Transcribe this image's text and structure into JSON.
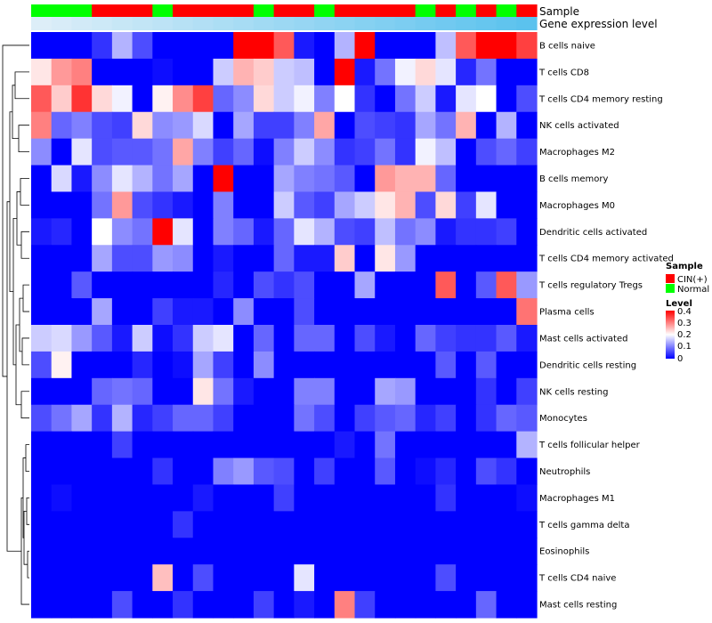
{
  "chart_data": {
    "type": "heatmap",
    "title": "",
    "annotation_tracks": {
      "sample": {
        "label": "Sample",
        "values": [
          "Normal",
          "Normal",
          "Normal",
          "CIN(+)",
          "CIN(+)",
          "CIN(+)",
          "Normal",
          "CIN(+)",
          "CIN(+)",
          "CIN(+)",
          "CIN(+)",
          "Normal",
          "CIN(+)",
          "CIN(+)",
          "Normal",
          "CIN(+)",
          "CIN(+)",
          "CIN(+)",
          "CIN(+)",
          "Normal",
          "CIN(+)",
          "Normal",
          "CIN(+)",
          "Normal",
          "CIN(+)"
        ]
      },
      "gene_expression_level": {
        "label": "Gene expression level",
        "values": [
          0.02,
          0.04,
          0.06,
          0.08,
          0.1,
          0.12,
          0.14,
          0.16,
          0.18,
          0.2,
          0.22,
          0.24,
          0.26,
          0.28,
          0.3,
          0.32,
          0.34,
          0.36,
          0.38,
          0.4,
          0.42,
          0.44,
          0.46,
          0.48,
          0.5
        ]
      }
    },
    "rows": [
      "B cells naive",
      "T cells CD8",
      "T cells CD4 memory resting",
      "NK cells activated",
      "Macrophages M2",
      "B cells memory",
      "Macrophages M0",
      "Dendritic cells activated",
      "T cells CD4 memory activated",
      "T cells regulatory  Tregs",
      "Plasma cells",
      "Mast cells activated",
      "Dendritic cells resting",
      "NK cells resting",
      "Monocytes",
      "T cells follicular helper",
      "Neutrophils",
      "Macrophages M1",
      "T cells gamma delta",
      "Eosinophils",
      "T cells CD4 naive",
      "Mast cells resting"
    ],
    "values": [
      [
        0,
        0,
        0,
        0.04,
        0.14,
        0.06,
        0,
        0,
        0,
        0,
        0.4,
        0.4,
        0.33,
        0.02,
        0,
        0.14,
        0.42,
        0,
        0,
        0,
        0.15,
        0.33,
        0.42,
        0.42,
        0.35
      ],
      [
        0.22,
        0.28,
        0.3,
        0,
        0,
        0,
        0.01,
        0,
        0,
        0.16,
        0.26,
        0.24,
        0.16,
        0.15,
        0,
        0.42,
        0.02,
        0.09,
        0.19,
        0.23,
        0.18,
        0.03,
        0.09,
        0,
        0
      ],
      [
        0.33,
        0.24,
        0.36,
        0.23,
        0.19,
        0,
        0.21,
        0.29,
        0.35,
        0.08,
        0.11,
        0.23,
        0.16,
        0.19,
        0.1,
        0.2,
        0.04,
        0,
        0.09,
        0.16,
        0.02,
        0.18,
        0.2,
        0,
        0.06
      ],
      [
        0.3,
        0.08,
        0.1,
        0.06,
        0.05,
        0.23,
        0.11,
        0.12,
        0.17,
        0,
        0.13,
        0.05,
        0.05,
        0.1,
        0.27,
        0,
        0.06,
        0.05,
        0.04,
        0.13,
        0.09,
        0.26,
        0,
        0.14,
        0
      ],
      [
        0.11,
        0,
        0.18,
        0.06,
        0.07,
        0.07,
        0.09,
        0.27,
        0.1,
        0.05,
        0.08,
        0.01,
        0.1,
        0.16,
        0.11,
        0.04,
        0.05,
        0.09,
        0.04,
        0.19,
        0.15,
        0,
        0.06,
        0.08,
        0.05
      ],
      [
        0,
        0.17,
        0.02,
        0.11,
        0.18,
        0.14,
        0.09,
        0.13,
        0,
        0.42,
        0,
        0,
        0.13,
        0.1,
        0.09,
        0.07,
        0,
        0.28,
        0.26,
        0.26,
        0.08,
        0,
        0,
        0,
        0
      ],
      [
        0,
        0,
        0,
        0.09,
        0.28,
        0.06,
        0.04,
        0.02,
        0,
        0.1,
        0,
        0,
        0.16,
        0.07,
        0.05,
        0.13,
        0.16,
        0.22,
        0.26,
        0.06,
        0.23,
        0.05,
        0.18,
        0,
        0
      ],
      [
        0.02,
        0.03,
        0,
        0.2,
        0.11,
        0.09,
        0.44,
        0.18,
        0,
        0.1,
        0.08,
        0.02,
        0.08,
        0.18,
        0.14,
        0.06,
        0.05,
        0.15,
        0.09,
        0.11,
        0.02,
        0.04,
        0.04,
        0.05,
        0
      ],
      [
        0,
        0,
        0,
        0.13,
        0.06,
        0.06,
        0.12,
        0.11,
        0,
        0.02,
        0,
        0,
        0.08,
        0.02,
        0.02,
        0.24,
        0,
        0.22,
        0.12,
        0,
        0,
        0,
        0,
        0,
        0
      ],
      [
        0,
        0,
        0.07,
        0,
        0,
        0,
        0,
        0,
        0,
        0.03,
        0,
        0.06,
        0.04,
        0.06,
        0,
        0,
        0.13,
        0,
        0,
        0,
        0.33,
        0,
        0.07,
        0.33,
        0.12
      ],
      [
        0,
        0,
        0,
        0.13,
        0,
        0,
        0.05,
        0.02,
        0.02,
        0,
        0.11,
        0,
        0,
        0.06,
        0,
        0,
        0,
        0,
        0,
        0,
        0,
        0,
        0,
        0,
        0.31
      ],
      [
        0.16,
        0.17,
        0.12,
        0.07,
        0.02,
        0.16,
        0.01,
        0.04,
        0.16,
        0.18,
        0,
        0.08,
        0,
        0.08,
        0.08,
        0,
        0.06,
        0.02,
        0,
        0.08,
        0.05,
        0.04,
        0.04,
        0.07,
        0.02
      ],
      [
        0.06,
        0.21,
        0,
        0,
        0,
        0.03,
        0,
        0.01,
        0.13,
        0.05,
        0,
        0.11,
        0,
        0,
        0,
        0,
        0,
        0,
        0,
        0,
        0.07,
        0,
        0.07,
        0,
        0
      ],
      [
        0,
        0,
        0,
        0.08,
        0.09,
        0.08,
        0,
        0,
        0.22,
        0.09,
        0.02,
        0,
        0,
        0.1,
        0.1,
        0,
        0,
        0.13,
        0.12,
        0,
        0,
        0,
        0.04,
        0,
        0.05
      ],
      [
        0.06,
        0.09,
        0.13,
        0.04,
        0.14,
        0.03,
        0.05,
        0.08,
        0.08,
        0.05,
        0,
        0,
        0,
        0.09,
        0.06,
        0,
        0.05,
        0.07,
        0.08,
        0.03,
        0.05,
        0,
        0.04,
        0.08,
        0.07
      ],
      [
        0,
        0,
        0,
        0,
        0.05,
        0,
        0,
        0,
        0,
        0,
        0,
        0,
        0,
        0,
        0,
        0.02,
        0,
        0.09,
        0,
        0,
        0,
        0,
        0,
        0,
        0.14
      ],
      [
        0,
        0,
        0,
        0,
        0,
        0,
        0.04,
        0,
        0,
        0.1,
        0.12,
        0.07,
        0.06,
        0,
        0.05,
        0,
        0,
        0.07,
        0,
        0.01,
        0.03,
        0,
        0.06,
        0.04,
        0
      ],
      [
        0,
        0.01,
        0,
        0,
        0,
        0,
        0,
        0,
        0.02,
        0,
        0,
        0,
        0.05,
        0,
        0,
        0,
        0,
        0,
        0,
        0,
        0.04,
        0,
        0,
        0,
        0.01
      ],
      [
        0,
        0,
        0,
        0,
        0,
        0,
        0,
        0.04,
        0,
        0,
        0,
        0,
        0,
        0,
        0,
        0,
        0,
        0,
        0,
        0,
        0,
        0,
        0,
        0,
        0
      ],
      [
        0,
        0,
        0,
        0,
        0,
        0,
        0,
        0,
        0,
        0,
        0,
        0,
        0,
        0,
        0,
        0,
        0,
        0,
        0,
        0,
        0,
        0,
        0,
        0,
        0
      ],
      [
        0,
        0,
        0,
        0,
        0,
        0,
        0.25,
        0,
        0.06,
        0,
        0,
        0,
        0,
        0.18,
        0,
        0,
        0,
        0,
        0,
        0,
        0.06,
        0,
        0,
        0,
        0
      ],
      [
        0,
        0,
        0,
        0,
        0.06,
        0,
        0,
        0.04,
        0,
        0,
        0,
        0.05,
        0,
        0.02,
        0,
        0.3,
        0.05,
        0,
        0,
        0,
        0,
        0,
        0.08,
        0,
        0
      ]
    ],
    "color_scale": {
      "min": 0,
      "max": 0.4,
      "low": "#0000FF",
      "mid": "#FFFFFF",
      "mid_value": 0.2,
      "high": "#FF0000"
    }
  },
  "legend": {
    "sample": {
      "title": "Sample",
      "items": [
        {
          "label": "CIN(+)",
          "color": "#FF0000"
        },
        {
          "label": "Normal",
          "color": "#00FF00"
        }
      ]
    },
    "level": {
      "title": "Level",
      "ticks": [
        "0.4",
        "0.3",
        "0.2",
        "0.1",
        "0"
      ]
    }
  },
  "colors": {
    "cin": "#FF0000",
    "normal": "#00FF00",
    "expr_low": "#DDEEF8",
    "expr_high": "#5BC2EE"
  }
}
